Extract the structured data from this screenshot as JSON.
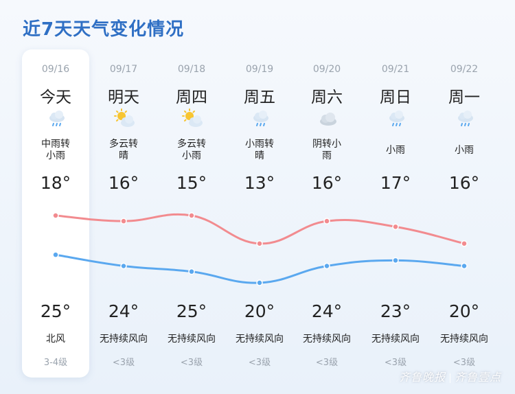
{
  "title": "近7天天气变化情况",
  "colors": {
    "high_line": "#f28b8f",
    "low_line": "#5aa8ef",
    "title": "#2f6fc4"
  },
  "days": [
    {
      "date": "09/16",
      "day": "今天",
      "icon": "rain-cloud-icon",
      "desc": [
        "中雨转",
        "小雨"
      ],
      "top_temp": "18°",
      "bottom_temp": "25°",
      "wind": "北风",
      "level": "3-4级"
    },
    {
      "date": "09/17",
      "day": "明天",
      "icon": "sun-cloud-icon",
      "desc": [
        "多云转",
        "晴"
      ],
      "top_temp": "16°",
      "bottom_temp": "24°",
      "wind": "无持续风向",
      "level": "<3级"
    },
    {
      "date": "09/18",
      "day": "周四",
      "icon": "sun-cloud-icon",
      "desc": [
        "多云转",
        "小雨"
      ],
      "top_temp": "15°",
      "bottom_temp": "25°",
      "wind": "无持续风向",
      "level": "<3级"
    },
    {
      "date": "09/19",
      "day": "周五",
      "icon": "rain-cloud-icon",
      "desc": [
        "小雨转",
        "晴"
      ],
      "top_temp": "13°",
      "bottom_temp": "20°",
      "wind": "无持续风向",
      "level": "<3级"
    },
    {
      "date": "09/20",
      "day": "周六",
      "icon": "cloud-icon",
      "desc": [
        "阴转小",
        "雨"
      ],
      "top_temp": "16°",
      "bottom_temp": "24°",
      "wind": "无持续风向",
      "level": "<3级"
    },
    {
      "date": "09/21",
      "day": "周日",
      "icon": "rain-cloud-icon",
      "desc": [
        "小雨"
      ],
      "top_temp": "17°",
      "bottom_temp": "23°",
      "wind": "无持续风向",
      "level": "<3级"
    },
    {
      "date": "09/22",
      "day": "周一",
      "icon": "rain-cloud-icon",
      "desc": [
        "小雨"
      ],
      "top_temp": "16°",
      "bottom_temp": "20°",
      "wind": "无持续风向",
      "level": "<3级"
    }
  ],
  "chart_data": {
    "type": "line",
    "categories": [
      "09/16",
      "09/17",
      "09/18",
      "09/19",
      "09/20",
      "09/21",
      "09/22"
    ],
    "series": [
      {
        "values": [
          25,
          24,
          25,
          20,
          24,
          23,
          20
        ],
        "color": "#f28b8f"
      },
      {
        "values": [
          18,
          16,
          15,
          13,
          16,
          17,
          16
        ],
        "color": "#5aa8ef"
      }
    ]
  },
  "watermark": {
    "left": "齐鲁晚报",
    "right": "齐鲁壹点"
  }
}
